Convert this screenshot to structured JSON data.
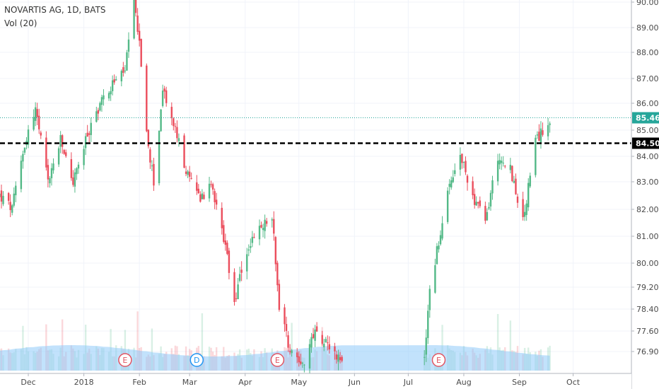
{
  "header": {
    "title": "NOVARTIS AG, 1D, BATS",
    "volume_label": "Vol (20)"
  },
  "colors": {
    "up": "#53b987",
    "down": "#eb4d5c",
    "volume_area": "#90caf9",
    "grid": "#f0f3fa",
    "last_price": "#26a69a",
    "level_line": "#000000"
  },
  "chart_data": {
    "type": "candlestick",
    "title": "NOVARTIS AG, 1D, BATS",
    "y_axis": {
      "position": "right",
      "ticks": [
        76.9,
        77.6,
        78.4,
        79.2,
        80.0,
        81.0,
        82.0,
        83.0,
        84.0,
        85.0,
        86.0,
        87.0,
        88.0,
        89.0,
        90.0
      ]
    },
    "x_axis": {
      "ticks": [
        "Dec",
        "2018",
        "Feb",
        "Mar",
        "Apr",
        "May",
        "Jun",
        "Jul",
        "Aug",
        "Sep",
        "Oct"
      ]
    },
    "last_price": {
      "label": "85.46",
      "value": 85.46
    },
    "horizontal_level": {
      "label": "84.50",
      "value": 84.5
    },
    "events": [
      {
        "label": "E",
        "date": "Jan 24"
      },
      {
        "label": "D",
        "date": "Mar 5"
      },
      {
        "label": "E",
        "date": "Apr 19"
      },
      {
        "label": "E",
        "date": "Jul 18"
      }
    ],
    "volume_indicator": "Vol (20)",
    "approximate_path": [
      {
        "x": "Nov 15",
        "close": 82.5
      },
      {
        "x": "Nov 22",
        "close": 82.0
      },
      {
        "x": "Nov 29",
        "close": 84.5
      },
      {
        "x": "Dec 5",
        "close": 85.8
      },
      {
        "x": "Dec 12",
        "close": 83.0
      },
      {
        "x": "Dec 19",
        "close": 84.6
      },
      {
        "x": "Dec 26",
        "close": 83.0
      },
      {
        "x": "Jan 3",
        "close": 84.8
      },
      {
        "x": "Jan 10",
        "close": 86.0
      },
      {
        "x": "Jan 17",
        "close": 86.8
      },
      {
        "x": "Jan 24",
        "close": 87.3
      },
      {
        "x": "Jan 29",
        "close": 90.0
      },
      {
        "x": "Feb 1",
        "close": 88.5
      },
      {
        "x": "Feb 5",
        "close": 84.8
      },
      {
        "x": "Feb 9",
        "close": 83.0
      },
      {
        "x": "Feb 14",
        "close": 86.5
      },
      {
        "x": "Feb 21",
        "close": 85.0
      },
      {
        "x": "Feb 28",
        "close": 83.2
      },
      {
        "x": "Mar 7",
        "close": 82.5
      },
      {
        "x": "Mar 14",
        "close": 82.8
      },
      {
        "x": "Mar 21",
        "close": 80.5
      },
      {
        "x": "Mar 26",
        "close": 78.6
      },
      {
        "x": "Apr 2",
        "close": 80.5
      },
      {
        "x": "Apr 9",
        "close": 81.2
      },
      {
        "x": "Apr 16",
        "close": 81.8
      },
      {
        "x": "Apr 20",
        "close": 78.5
      },
      {
        "x": "Apr 26",
        "close": 77.0
      },
      {
        "x": "May 3",
        "close": 76.5
      },
      {
        "x": "May 10",
        "close": 77.5
      },
      {
        "x": "May 17",
        "close": 77.3
      },
      {
        "x": "May 24",
        "close": 76.5
      },
      {
        "x": "Jul 10",
        "close": 76.8
      },
      {
        "x": "Jul 13",
        "close": 79.0
      },
      {
        "x": "Jul 18",
        "close": 80.8
      },
      {
        "x": "Jul 23",
        "close": 82.5
      },
      {
        "x": "Jul 30",
        "close": 84.0
      },
      {
        "x": "Aug 6",
        "close": 82.5
      },
      {
        "x": "Aug 13",
        "close": 81.5
      },
      {
        "x": "Aug 20",
        "close": 84.0
      },
      {
        "x": "Aug 27",
        "close": 83.5
      },
      {
        "x": "Sep 3",
        "close": 81.5
      },
      {
        "x": "Sep 10",
        "close": 84.5
      },
      {
        "x": "Sep 14",
        "close": 85.0
      },
      {
        "x": "Sep 18",
        "close": 85.46
      }
    ]
  }
}
